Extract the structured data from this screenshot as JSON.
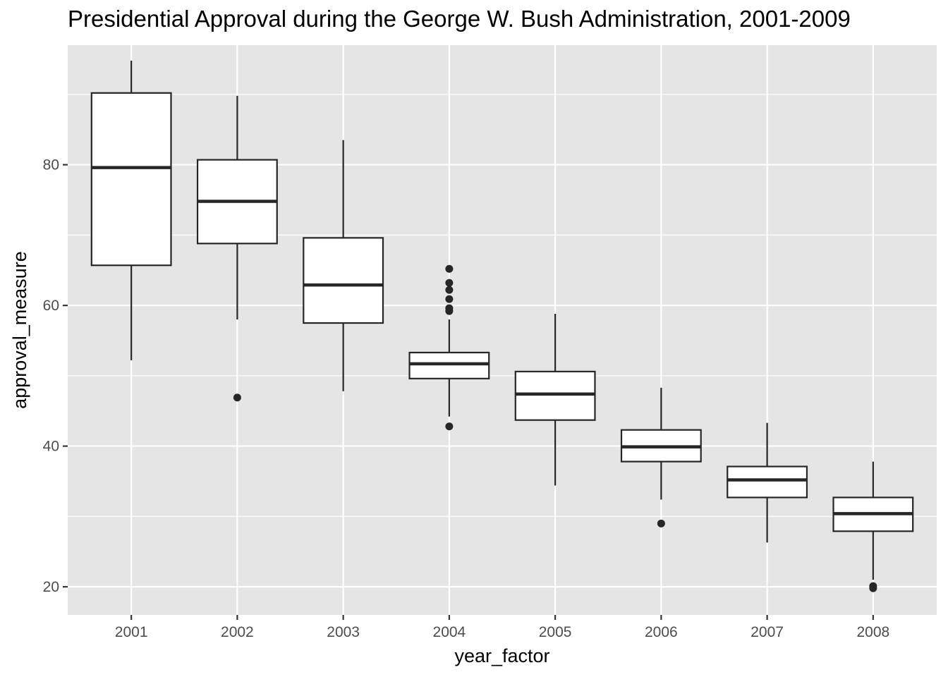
{
  "chart_data": {
    "type": "boxplot",
    "title": "Presidential Approval during the George W. Bush Administration, 2001-2009",
    "xlabel": "year_factor",
    "ylabel": "approval_measure",
    "ylim": [
      16,
      97
    ],
    "y_ticks": [
      20,
      40,
      60,
      80
    ],
    "grid": true,
    "colors": {
      "panel": "#e5e5e5",
      "grid": "#ffffff",
      "box_fill": "#ffffff",
      "box_stroke": "#262626",
      "outlier": "#262626"
    },
    "categories": [
      "2001",
      "2002",
      "2003",
      "2004",
      "2005",
      "2006",
      "2007",
      "2008"
    ],
    "boxes": [
      {
        "category": "2001",
        "whisker_low": 52.2,
        "q1": 65.7,
        "median": 79.6,
        "q3": 90.2,
        "whisker_high": 94.8,
        "outliers": []
      },
      {
        "category": "2002",
        "whisker_low": 58.0,
        "q1": 68.8,
        "median": 74.8,
        "q3": 80.7,
        "whisker_high": 89.8,
        "outliers": [
          46.9
        ]
      },
      {
        "category": "2003",
        "whisker_low": 47.8,
        "q1": 57.5,
        "median": 62.9,
        "q3": 69.6,
        "whisker_high": 83.5,
        "outliers": []
      },
      {
        "category": "2004",
        "whisker_low": 44.2,
        "q1": 49.6,
        "median": 51.7,
        "q3": 53.3,
        "whisker_high": 58.0,
        "outliers": [
          42.8,
          59.2,
          59.6,
          60.9,
          62.2,
          63.2,
          65.2
        ]
      },
      {
        "category": "2005",
        "whisker_low": 34.4,
        "q1": 43.7,
        "median": 47.4,
        "q3": 50.6,
        "whisker_high": 58.8,
        "outliers": []
      },
      {
        "category": "2006",
        "whisker_low": 32.4,
        "q1": 37.8,
        "median": 39.9,
        "q3": 42.3,
        "whisker_high": 48.3,
        "outliers": [
          29.0
        ]
      },
      {
        "category": "2007",
        "whisker_low": 26.3,
        "q1": 32.7,
        "median": 35.2,
        "q3": 37.1,
        "whisker_high": 43.3,
        "outliers": []
      },
      {
        "category": "2008",
        "whisker_low": 21.0,
        "q1": 27.9,
        "median": 30.4,
        "q3": 32.7,
        "whisker_high": 37.8,
        "outliers": [
          19.8,
          20.1
        ]
      }
    ]
  }
}
